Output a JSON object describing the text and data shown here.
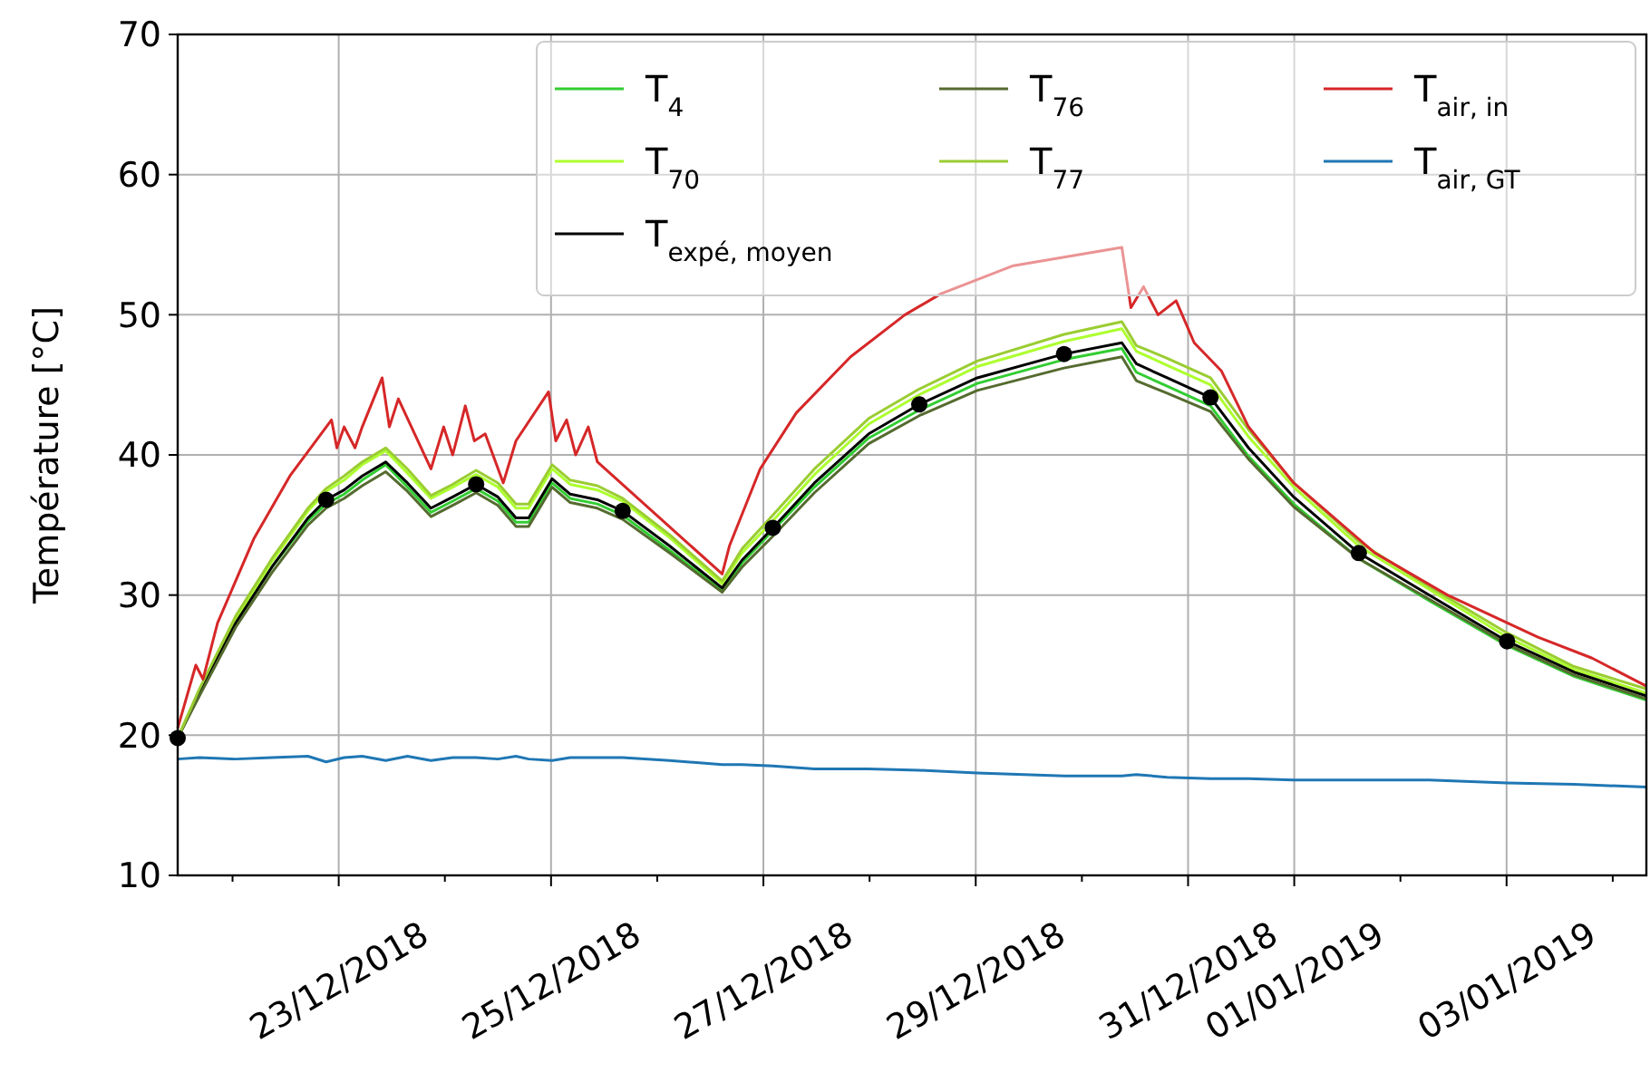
{
  "chart_data": {
    "type": "line",
    "ylabel": "Température [°C]",
    "x": [
      "2018-12-21T11:36",
      "2018-12-21T16:30",
      "2018-12-22T00:42",
      "2018-12-22T08:54",
      "2018-12-22T17:03",
      "2018-12-22T21:09",
      "2018-12-23T01:14",
      "2018-12-23T05:19",
      "2018-12-23T10:38",
      "2018-12-23T15:32",
      "2018-12-23T20:51",
      "2018-12-24T01:46",
      "2018-12-24T07:04",
      "2018-12-24T11:59",
      "2018-12-24T16:04",
      "2018-12-24T18:56",
      "2018-12-25T00:15",
      "2018-12-25T04:20",
      "2018-12-25T10:28",
      "2018-12-25T16:11",
      "2018-12-26T02:49",
      "2018-12-26T14:41",
      "2018-12-26T19:11",
      "2018-12-27T02:08",
      "2018-12-27T11:32",
      "2018-12-27T23:48",
      "2018-12-28T11:14",
      "2018-12-29T00:20",
      "2018-12-29T19:57",
      "2018-12-30T09:02",
      "2018-12-30T12:18",
      "2018-12-30T19:16",
      "2018-12-31T05:04",
      "2018-12-31T13:40",
      "2018-12-31T23:53",
      "2019-01-01T14:36",
      "2019-01-02T06:32",
      "2019-01-03T00:07",
      "2019-01-03T15:15",
      "2019-01-04T07:36"
    ],
    "series": [
      {
        "name": "T$_{4}$",
        "color": "#32cd32",
        "values": [
          null,
          null,
          28,
          32,
          35.3,
          36.5,
          37.2,
          38.2,
          39.3,
          37.7,
          35.9,
          36.7,
          37.6,
          36.7,
          35.2,
          35.2,
          38,
          36.9,
          36.5,
          35.7,
          33.2,
          30.3,
          32.3,
          34.6,
          37.7,
          41.2,
          43.2,
          45.1,
          46.8,
          47.6,
          45.9,
          44.9,
          43.5,
          39.9,
          36.5,
          32.6,
          29.6,
          26.4,
          24.2,
          22.5
        ]
      },
      {
        "name": "T$_{70}$",
        "color": "#adff2f",
        "values": [
          19.8,
          23.2,
          28.3,
          32.4,
          36,
          37.4,
          38.2,
          39.3,
          40.3,
          38.7,
          36.9,
          37.7,
          38.6,
          37.7,
          36.2,
          36.2,
          39,
          37.9,
          37.5,
          36.7,
          34.1,
          30.8,
          33,
          35.3,
          38.6,
          42.2,
          44.3,
          46.3,
          48.1,
          49,
          47.4,
          46.4,
          45,
          41.3,
          37.7,
          33.5,
          30.4,
          27,
          24.7,
          23
        ]
      },
      {
        "name": "T$_{expé, moyen}$",
        "color": "#000000",
        "values": [
          19.8,
          23,
          28,
          32,
          35.5,
          36.8,
          37.5,
          38.5,
          39.5,
          38,
          36.2,
          37,
          37.9,
          37,
          35.5,
          35.5,
          38.3,
          37.2,
          36.8,
          36,
          33.5,
          30.5,
          32.5,
          34.8,
          38,
          41.5,
          43.6,
          45.5,
          47.2,
          48,
          46.5,
          45.5,
          44.1,
          40.5,
          37,
          33,
          30,
          26.7,
          24.5,
          22.8
        ]
      },
      {
        "name": "T$_{76}$",
        "color": "#556b2f",
        "values": [
          19.8,
          22.8,
          27.7,
          31.6,
          35,
          36.2,
          36.9,
          37.8,
          38.8,
          37.4,
          35.6,
          36.4,
          37.3,
          36.4,
          34.9,
          34.9,
          37.7,
          36.6,
          36.2,
          35.4,
          33,
          30.2,
          32,
          34.2,
          37.3,
          40.8,
          42.8,
          44.6,
          46.2,
          47,
          45.3,
          44.4,
          43.1,
          39.7,
          36.3,
          32.6,
          29.7,
          26.5,
          24.3,
          22.6
        ]
      },
      {
        "name": "T$_{77}$",
        "color": "#9acd32",
        "values": [
          19.8,
          23.3,
          28.5,
          32.6,
          36.2,
          37.6,
          38.5,
          39.5,
          40.5,
          39,
          37.1,
          37.9,
          38.9,
          38,
          36.5,
          36.5,
          39.3,
          38.2,
          37.8,
          36.9,
          34.3,
          31,
          33.3,
          35.7,
          39,
          42.6,
          44.7,
          46.7,
          48.6,
          49.5,
          47.8,
          46.9,
          45.5,
          41.8,
          38,
          33.8,
          30.6,
          27.3,
          24.9,
          23.3
        ]
      },
      {
        "name": "T$_{air, in}$",
        "color": "#d62728",
        "x": [
          "2018-12-21T11:36",
          "2018-12-21T15:42",
          "2018-12-21T17:20",
          "2018-12-21T20:36",
          "2018-12-22T04:47",
          "2018-12-22T12:58",
          "2018-12-22T22:22",
          "2018-12-22T23:35",
          "2018-12-23T01:14",
          "2018-12-23T03:41",
          "2018-12-23T05:19",
          "2018-12-23T09:49",
          "2018-12-23T11:27",
          "2018-12-23T13:29",
          "2018-12-23T20:51",
          "2018-12-23T23:43",
          "2018-12-24T01:46",
          "2018-12-24T04:37",
          "2018-12-24T06:40",
          "2018-12-24T09:07",
          "2018-12-24T13:12",
          "2018-12-24T16:04",
          "2018-12-24T23:26",
          "2018-12-25T01:04",
          "2018-12-25T03:31",
          "2018-12-25T05:34",
          "2018-12-25T08:25",
          "2018-12-25T10:28",
          "2018-12-26T14:41",
          "2018-12-26T16:19",
          "2018-12-26T23:16",
          "2018-12-27T07:26",
          "2018-12-27T19:42",
          "2018-12-28T08:00",
          "2018-12-28T16:09",
          "2018-12-29T08:30",
          "2018-12-30T09:02",
          "2018-12-30T11:05",
          "2018-12-30T13:56",
          "2018-12-30T17:13",
          "2018-12-30T21:18",
          "2018-12-31T01:23",
          "2018-12-31T07:31",
          "2018-12-31T13:40",
          "2018-12-31T23:53",
          "2019-01-01T18:16",
          "2019-01-02T10:38",
          "2019-01-03T07:06",
          "2019-01-03T19:20",
          "2019-01-04T07:36"
        ],
        "values": [
          20.5,
          25,
          24,
          28,
          34,
          38.5,
          42.5,
          40.5,
          42,
          40.5,
          42,
          45.5,
          42,
          44,
          39,
          42,
          40,
          43.5,
          41,
          41.5,
          38,
          41,
          44.5,
          41,
          42.5,
          40,
          42,
          39.5,
          31.5,
          33.5,
          39,
          43,
          47,
          50,
          51.5,
          53.5,
          54.8,
          50.5,
          52,
          50,
          51,
          48,
          46,
          42,
          38,
          33,
          30,
          27,
          25.5,
          23.5
        ]
      },
      {
        "name": "T$_{air, GT}$",
        "color": "#1f77b4",
        "values": [
          18.3,
          18.4,
          18.3,
          18.4,
          18.5,
          18.1,
          18.4,
          18.5,
          18.2,
          18.5,
          18.2,
          18.4,
          18.4,
          18.3,
          18.5,
          18.3,
          18.2,
          18.4,
          18.4,
          18.4,
          18.2,
          17.9,
          17.9,
          17.8,
          17.6,
          17.6,
          17.5,
          17.3,
          17.1,
          17.1,
          17.2,
          17,
          16.9,
          16.9,
          16.8,
          16.8,
          16.8,
          16.6,
          16.5,
          16.3
        ]
      },
      {
        "type": "scatter",
        "color": "#000000",
        "marker": "circle",
        "x": [
          "2018-12-21T11:36",
          "2018-12-22T21:09",
          "2018-12-24T07:04",
          "2018-12-25T16:11",
          "2018-12-27T02:08",
          "2018-12-28T11:14",
          "2018-12-29T19:57",
          "2018-12-31T05:04",
          "2019-01-01T14:36",
          "2019-01-03T00:07"
        ],
        "values": [
          19.8,
          36.8,
          37.9,
          36,
          34.8,
          43.6,
          47.2,
          44.1,
          33,
          26.7
        ]
      }
    ],
    "xlim": [
      "2018-12-21T11:36",
      "2019-01-04T07:36"
    ],
    "xticks": [
      {
        "value": "2018-12-22",
        "label": null
      },
      {
        "value": "2018-12-23",
        "label": "23/12/2018"
      },
      {
        "value": "2018-12-24",
        "label": null
      },
      {
        "value": "2018-12-25",
        "label": "25/12/2018"
      },
      {
        "value": "2018-12-26",
        "label": null
      },
      {
        "value": "2018-12-27",
        "label": "27/12/2018"
      },
      {
        "value": "2018-12-28",
        "label": null
      },
      {
        "value": "2018-12-29",
        "label": "29/12/2018"
      },
      {
        "value": "2018-12-30",
        "label": null
      },
      {
        "value": "2018-12-31",
        "label": "31/12/2018"
      },
      {
        "value": "2019-01-01",
        "label": "01/01/2019"
      },
      {
        "value": "2019-01-02",
        "label": null
      },
      {
        "value": "2019-01-03",
        "label": "03/01/2019"
      },
      {
        "value": "2019-01-04",
        "label": null
      }
    ],
    "ylim": [
      10,
      70
    ],
    "yticks": [
      10,
      20,
      30,
      40,
      50,
      60,
      70
    ],
    "grid": true,
    "legend": "top right",
    "line_style": "solid"
  }
}
